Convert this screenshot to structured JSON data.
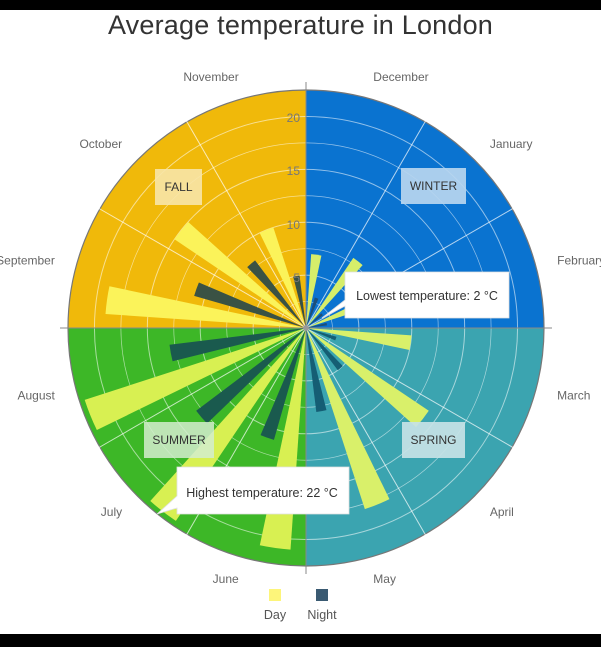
{
  "title": "Average temperature in London",
  "chart_data": {
    "type": "polar-bar",
    "title": "Average temperature in London",
    "unit": "°C",
    "categories": [
      "December",
      "January",
      "February",
      "March",
      "April",
      "May",
      "June",
      "July",
      "August",
      "September",
      "October",
      "November"
    ],
    "series": [
      {
        "name": "Day",
        "color": "#fbf35a",
        "values": [
          7,
          8,
          8,
          10,
          14,
          18,
          21,
          22,
          22,
          19,
          15,
          10
        ]
      },
      {
        "name": "Night",
        "color": "#3a5a6a",
        "values": [
          3,
          2,
          2,
          3,
          5,
          8,
          11,
          13,
          13,
          11,
          8,
          5
        ]
      }
    ],
    "radial_axis": {
      "ticks": [
        5,
        10,
        15,
        20
      ],
      "range": [
        0,
        22.5
      ],
      "grid": true
    },
    "seasons": [
      {
        "label": "WINTER",
        "color": "#0a73d0",
        "months": [
          "December",
          "January",
          "February"
        ]
      },
      {
        "label": "SPRING",
        "color": "#3ba4b0",
        "months": [
          "March",
          "April",
          "May"
        ]
      },
      {
        "label": "SUMMER",
        "color": "#3db727",
        "months": [
          "June",
          "July",
          "August"
        ]
      },
      {
        "label": "FALL",
        "color": "#f0b90a",
        "months": [
          "September",
          "October",
          "November"
        ]
      }
    ],
    "annotations": [
      {
        "text": "Lowest temperature: 2 °C"
      },
      {
        "text": "Highest temperature: 22 °C"
      }
    ],
    "legend": {
      "position": "bottom",
      "items": [
        "Day",
        "Night"
      ]
    }
  },
  "legend": {
    "day": "Day",
    "night": "Night"
  },
  "tooltips": {
    "lowest": "Lowest temperature: 2 °C",
    "highest": "Highest temperature: 22 °C"
  },
  "seasons": {
    "winter": "WINTER",
    "spring": "SPRING",
    "summer": "SUMMER",
    "fall": "FALL"
  },
  "ticks": {
    "t5": "5",
    "t10": "10",
    "t15": "15",
    "t20": "20"
  }
}
